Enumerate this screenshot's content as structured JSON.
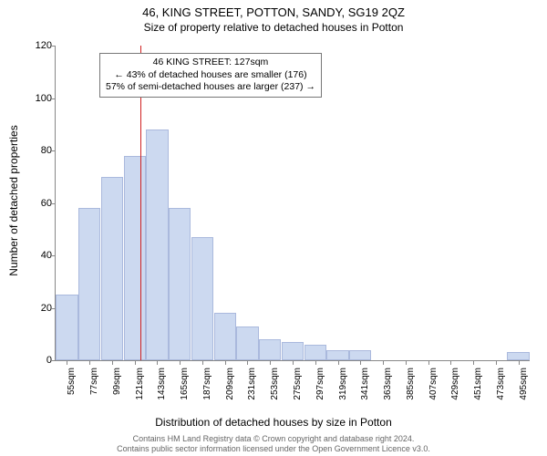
{
  "title": "46, KING STREET, POTTON, SANDY, SG19 2QZ",
  "subtitle": "Size of property relative to detached houses in Potton",
  "chart": {
    "type": "histogram",
    "ylabel": "Number of detached properties",
    "xlabel": "Distribution of detached houses by size in Potton",
    "ylim": [
      0,
      120
    ],
    "ytick_step": 20,
    "bar_color": "#ccd9f0",
    "bar_border": "#aab9dd",
    "background_color": "#ffffff",
    "axis_color": "#888888",
    "marker_line_color": "#d02020",
    "marker_value_sqm": 127,
    "categories": [
      "55sqm",
      "77sqm",
      "99sqm",
      "121sqm",
      "143sqm",
      "165sqm",
      "187sqm",
      "209sqm",
      "231sqm",
      "253sqm",
      "275sqm",
      "297sqm",
      "319sqm",
      "341sqm",
      "363sqm",
      "385sqm",
      "407sqm",
      "429sqm",
      "451sqm",
      "473sqm",
      "495sqm"
    ],
    "values": [
      25,
      58,
      70,
      78,
      88,
      58,
      47,
      18,
      13,
      8,
      7,
      6,
      4,
      4,
      0,
      0,
      0,
      0,
      0,
      0,
      3
    ],
    "label_fontsize": 12,
    "tick_fontsize": 10
  },
  "annotation": {
    "line1": "46 KING STREET: 127sqm",
    "line2": "← 43% of detached houses are smaller (176)",
    "line3": "57% of semi-detached houses are larger (237) →",
    "border_color": "#777777",
    "background": "#ffffff"
  },
  "footer": {
    "line1": "Contains HM Land Registry data © Crown copyright and database right 2024.",
    "line2": "Contains public sector information licensed under the Open Government Licence v3.0."
  }
}
